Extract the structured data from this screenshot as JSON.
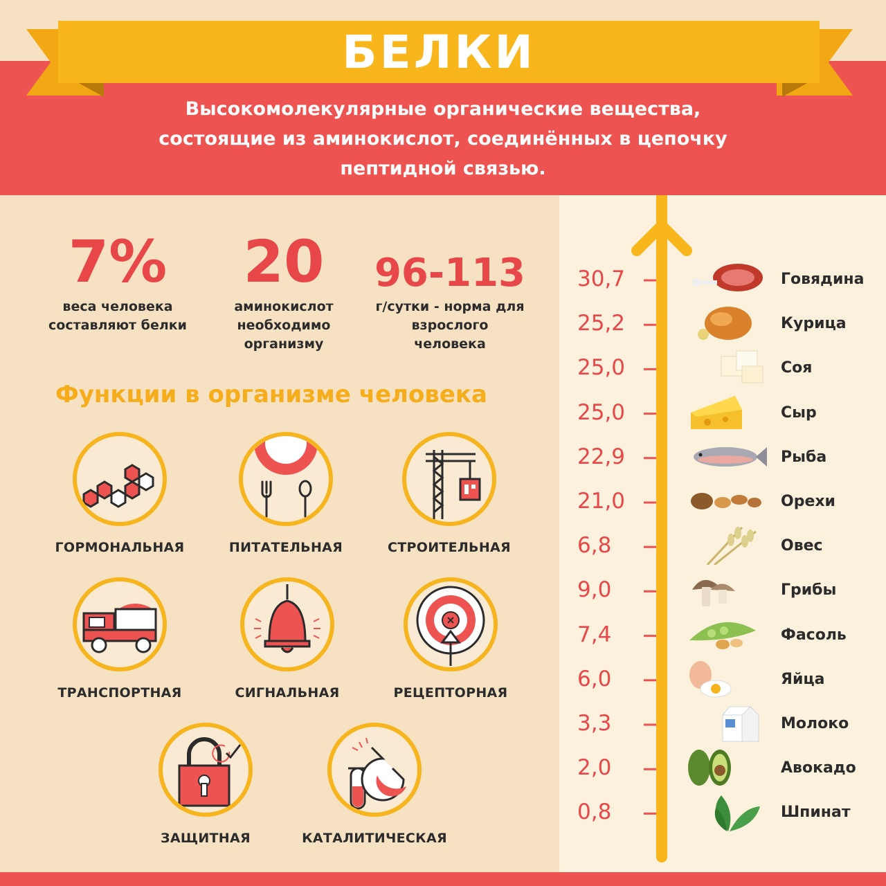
{
  "header": {
    "title": "БЕЛКИ",
    "definition_lines": [
      "Высокомолекулярные органические вещества,",
      "состоящие из аминокислот, соединённых в цепочку",
      "пептидной связью."
    ]
  },
  "stats": [
    {
      "value": "7%",
      "caption_lines": [
        "веса человека",
        "составляют белки"
      ]
    },
    {
      "value": "20",
      "caption_lines": [
        "аминокислот",
        "необходимо",
        "организму"
      ]
    },
    {
      "value": "96-113",
      "caption_lines": [
        "г/сутки - норма для",
        "взрослого",
        "человека"
      ]
    }
  ],
  "functions": {
    "title": "Функции в организме человека",
    "items": [
      {
        "label": "ГОРМОНАЛЬНАЯ",
        "icon": "hexagons-icon"
      },
      {
        "label": "ПИТАТЕЛЬНАЯ",
        "icon": "plate-fork-spoon-icon"
      },
      {
        "label": "СТРОИТЕЛЬНАЯ",
        "icon": "crane-icon"
      },
      {
        "label": "ТРАНСПОРТНАЯ",
        "icon": "truck-icon"
      },
      {
        "label": "СИГНАЛЬНАЯ",
        "icon": "bell-icon"
      },
      {
        "label": "РЕЦЕПТОРНАЯ",
        "icon": "target-icon"
      },
      {
        "label": "ЗАЩИТНАЯ",
        "icon": "lock-icon"
      },
      {
        "label": "КАТАЛИТИЧЕСКАЯ",
        "icon": "flask-icon"
      }
    ]
  },
  "protein_scale": {
    "items": [
      {
        "value": "30,7",
        "name": "Говядина",
        "icon": "beef-icon"
      },
      {
        "value": "25,2",
        "name": "Курица",
        "icon": "chicken-icon"
      },
      {
        "value": "25,0",
        "name": "Соя",
        "icon": "tofu-icon"
      },
      {
        "value": "25,0",
        "name": "Сыр",
        "icon": "cheese-icon"
      },
      {
        "value": "22,9",
        "name": "Рыба",
        "icon": "fish-icon"
      },
      {
        "value": "21,0",
        "name": "Орехи",
        "icon": "nuts-icon"
      },
      {
        "value": "6,8",
        "name": "Овес",
        "icon": "oats-icon"
      },
      {
        "value": "9,0",
        "name": "Грибы",
        "icon": "mushrooms-icon"
      },
      {
        "value": "7,4",
        "name": "Фасоль",
        "icon": "beans-icon"
      },
      {
        "value": "6,0",
        "name": "Яйца",
        "icon": "eggs-icon"
      },
      {
        "value": "3,3",
        "name": "Молоко",
        "icon": "milk-icon"
      },
      {
        "value": "2,0",
        "name": "Авокадо",
        "icon": "avocado-icon"
      },
      {
        "value": "0,8",
        "name": "Шпинат",
        "icon": "spinach-icon"
      }
    ]
  },
  "colors": {
    "red": "#ec5351",
    "yellow": "#f8b61c",
    "background": "#f7e1c3",
    "panel": "#fcf1dc"
  }
}
